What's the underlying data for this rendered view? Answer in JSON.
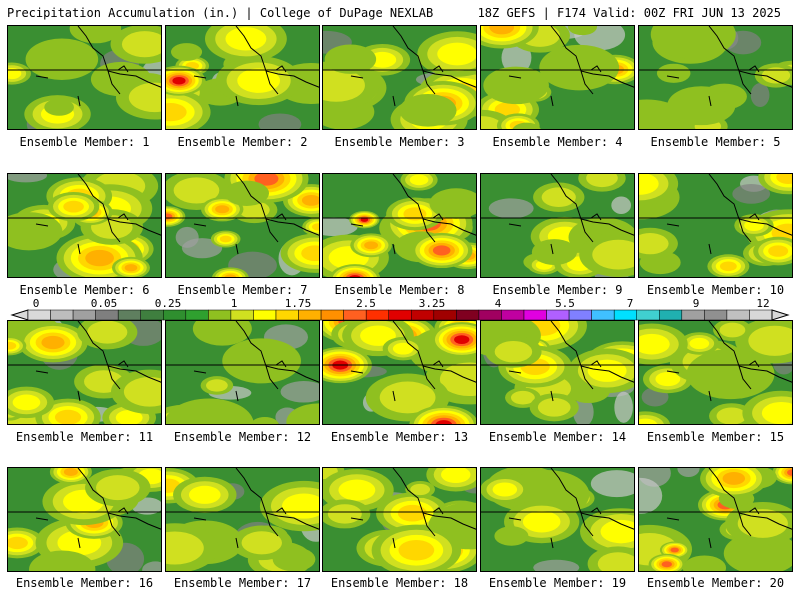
{
  "header": {
    "title": "Precipitation Accumulation (in.) | College of DuPage NEXLAB",
    "run_info": "18Z GEFS | F174 Valid: 00Z FRI JUN 13 2025"
  },
  "colorbar": {
    "tick_labels": [
      "0",
      "0.05",
      "0.25",
      "1",
      "1.75",
      "2.5",
      "3.25",
      "4",
      "5.5",
      "7",
      "9",
      "12"
    ],
    "colors": [
      "#d9d9d9",
      "#bdbdbd",
      "#a0a0a0",
      "#7f7f7f",
      "#5f7f5f",
      "#3f7f3f",
      "#2f8f2f",
      "#2fa02f",
      "#8fc020",
      "#d0e020",
      "#ffff00",
      "#ffd700",
      "#ffb000",
      "#ff9000",
      "#ff6020",
      "#ff3000",
      "#e00000",
      "#c00000",
      "#a00000",
      "#800020",
      "#a00060",
      "#c000a0",
      "#e000e0",
      "#b060ff",
      "#8080ff",
      "#40c0ff",
      "#00e0ff",
      "#40d0d0",
      "#20b0b0",
      "#a0a0a0",
      "#909090",
      "#c0c0c0",
      "#d8d8d8"
    ]
  },
  "panels": [
    {
      "label": "Ensemble Member: 1",
      "intensity": 0.35
    },
    {
      "label": "Ensemble Member: 2",
      "intensity": 0.8
    },
    {
      "label": "Ensemble Member: 3",
      "intensity": 0.55
    },
    {
      "label": "Ensemble Member: 4",
      "intensity": 0.65
    },
    {
      "label": "Ensemble Member: 5",
      "intensity": 0.35
    },
    {
      "label": "Ensemble Member: 6",
      "intensity": 0.6
    },
    {
      "label": "Ensemble Member: 7",
      "intensity": 0.8
    },
    {
      "label": "Ensemble Member: 8",
      "intensity": 0.85
    },
    {
      "label": "Ensemble Member: 9",
      "intensity": 0.35
    },
    {
      "label": "Ensemble Member: 10",
      "intensity": 0.55
    },
    {
      "label": "Ensemble Member: 11",
      "intensity": 0.6
    },
    {
      "label": "Ensemble Member: 12",
      "intensity": 0.3
    },
    {
      "label": "Ensemble Member: 13",
      "intensity": 0.85
    },
    {
      "label": "Ensemble Member: 14",
      "intensity": 0.6
    },
    {
      "label": "Ensemble Member: 15",
      "intensity": 0.45
    },
    {
      "label": "Ensemble Member: 16",
      "intensity": 0.65
    },
    {
      "label": "Ensemble Member: 17",
      "intensity": 0.45
    },
    {
      "label": "Ensemble Member: 18",
      "intensity": 0.65
    },
    {
      "label": "Ensemble Member: 19",
      "intensity": 0.35
    },
    {
      "label": "Ensemble Member: 20",
      "intensity": 0.75
    }
  ]
}
